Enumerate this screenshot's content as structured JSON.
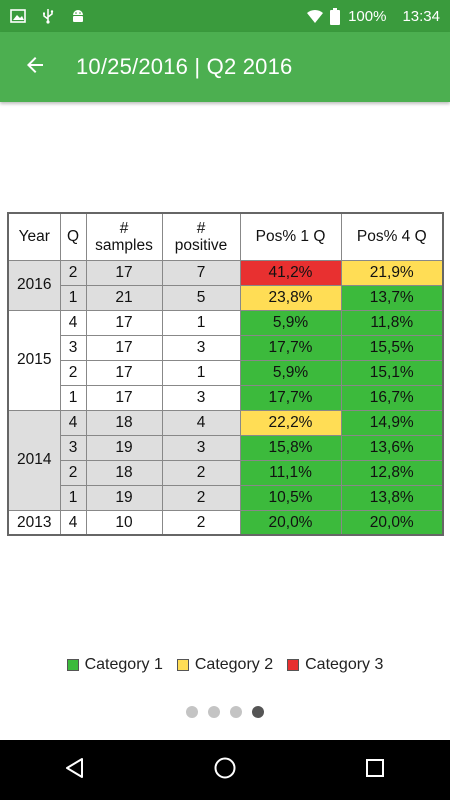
{
  "status_bar": {
    "battery": "100%",
    "time": "13:34",
    "icons": [
      "image-icon",
      "usb-icon",
      "android-icon",
      "wifi-icon",
      "battery-icon"
    ]
  },
  "app_bar": {
    "title": "10/25/2016 | Q2 2016",
    "back_icon": "arrow-left-icon"
  },
  "table": {
    "headers": [
      "Year",
      "Q",
      "#\nsamples",
      "#\npositive",
      "Pos% 1 Q",
      "Pos% 4 Q"
    ],
    "groups": [
      {
        "year": "2016",
        "rows": [
          {
            "q": "2",
            "samples": "17",
            "positive": "7",
            "p1": "41,2%",
            "p1_cat": "red",
            "p4": "21,9%",
            "p4_cat": "yellow"
          },
          {
            "q": "1",
            "samples": "21",
            "positive": "5",
            "p1": "23,8%",
            "p1_cat": "yellow",
            "p4": "13,7%",
            "p4_cat": "green"
          }
        ]
      },
      {
        "year": "2015",
        "rows": [
          {
            "q": "4",
            "samples": "17",
            "positive": "1",
            "p1": "5,9%",
            "p1_cat": "green",
            "p4": "11,8%",
            "p4_cat": "green"
          },
          {
            "q": "3",
            "samples": "17",
            "positive": "3",
            "p1": "17,7%",
            "p1_cat": "green",
            "p4": "15,5%",
            "p4_cat": "green"
          },
          {
            "q": "2",
            "samples": "17",
            "positive": "1",
            "p1": "5,9%",
            "p1_cat": "green",
            "p4": "15,1%",
            "p4_cat": "green"
          },
          {
            "q": "1",
            "samples": "17",
            "positive": "3",
            "p1": "17,7%",
            "p1_cat": "green",
            "p4": "16,7%",
            "p4_cat": "green"
          }
        ]
      },
      {
        "year": "2014",
        "rows": [
          {
            "q": "4",
            "samples": "18",
            "positive": "4",
            "p1": "22,2%",
            "p1_cat": "yellow",
            "p4": "14,9%",
            "p4_cat": "green"
          },
          {
            "q": "3",
            "samples": "19",
            "positive": "3",
            "p1": "15,8%",
            "p1_cat": "green",
            "p4": "13,6%",
            "p4_cat": "green"
          },
          {
            "q": "2",
            "samples": "18",
            "positive": "2",
            "p1": "11,1%",
            "p1_cat": "green",
            "p4": "12,8%",
            "p4_cat": "green"
          },
          {
            "q": "1",
            "samples": "19",
            "positive": "2",
            "p1": "10,5%",
            "p1_cat": "green",
            "p4": "13,8%",
            "p4_cat": "green"
          }
        ]
      },
      {
        "year": "2013",
        "rows": [
          {
            "q": "4",
            "samples": "10",
            "positive": "2",
            "p1": "20,0%",
            "p1_cat": "green",
            "p4": "20,0%",
            "p4_cat": "green"
          }
        ]
      }
    ]
  },
  "legend": [
    {
      "label": "Category 1",
      "color": "#3cba3c"
    },
    {
      "label": "Category 2",
      "color": "#ffdd55"
    },
    {
      "label": "Category 3",
      "color": "#e83030"
    }
  ],
  "pager": {
    "count": 4,
    "active_index": 3
  },
  "nav_bar": {
    "icons": [
      "back-triangle-icon",
      "home-circle-icon",
      "recents-square-icon"
    ]
  },
  "colors": {
    "status_bar": "#3a9b3d",
    "app_bar": "#4caf50",
    "green": "#3cba3c",
    "yellow": "#ffdd55",
    "red": "#e83030",
    "grey_row": "#dedede"
  }
}
